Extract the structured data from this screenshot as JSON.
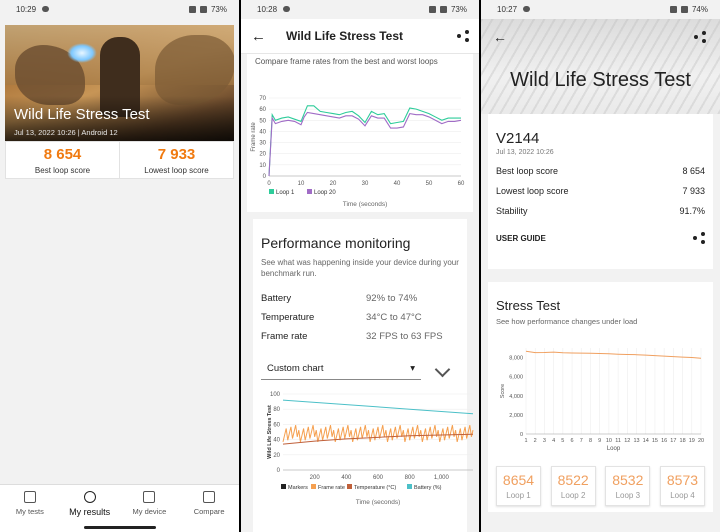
{
  "panel1": {
    "status": {
      "time": "10:29",
      "battery": "73%"
    },
    "hero": {
      "title": "Wild Life Stress Test",
      "subtitle": "Jul 13, 2022 10:26 | Android 12"
    },
    "scores": [
      {
        "value": "8 654",
        "label": "Best loop score"
      },
      {
        "value": "7 933",
        "label": "Lowest loop score"
      }
    ],
    "nav": [
      {
        "label": "My tests",
        "icon": "tests-icon"
      },
      {
        "label": "My results",
        "icon": "history-icon",
        "active": true
      },
      {
        "label": "My device",
        "icon": "device-icon"
      },
      {
        "label": "Compare",
        "icon": "compare-icon"
      }
    ]
  },
  "panel2": {
    "status": {
      "time": "10:28",
      "battery": "73%"
    },
    "appbar": {
      "title": "Wild Life Stress Test"
    },
    "compare_caption": "Compare frame rates from the best and worst loops",
    "perf": {
      "title": "Performance monitoring",
      "desc": "See what was happening inside your device during your benchmark run.",
      "rows": [
        {
          "key": "Battery",
          "value": "92% to 74%"
        },
        {
          "key": "Temperature",
          "value": "34°C to 47°C"
        },
        {
          "key": "Frame rate",
          "value": "32 FPS to 63 FPS"
        }
      ],
      "dropdown": "Custom chart"
    }
  },
  "panel3": {
    "status": {
      "time": "10:27",
      "battery": "74%"
    },
    "title": "Wild Life Stress Test",
    "device": "V2144",
    "date": "Jul 13, 2022 10:26",
    "rows": [
      {
        "key": "Best loop score",
        "value": "8 654"
      },
      {
        "key": "Lowest loop score",
        "value": "7 933"
      },
      {
        "key": "Stability",
        "value": "91.7%"
      }
    ],
    "guide": "USER GUIDE",
    "stress": {
      "title": "Stress Test",
      "desc": "See how performance changes under load"
    },
    "loops": [
      {
        "value": "8654",
        "label": "Loop 1"
      },
      {
        "value": "8522",
        "label": "Loop 2"
      },
      {
        "value": "8532",
        "label": "Loop 3"
      },
      {
        "value": "8573",
        "label": "Loop 4"
      }
    ]
  },
  "chart_data": [
    {
      "type": "line",
      "title": "",
      "xlabel": "Time (seconds)",
      "ylabel": "Frame rate",
      "xlim": [
        0,
        60
      ],
      "ylim": [
        0,
        70
      ],
      "x_ticks": [
        0,
        10,
        20,
        30,
        40,
        50,
        60
      ],
      "y_ticks": [
        0,
        10,
        20,
        30,
        40,
        50,
        60,
        70
      ],
      "legend": "bottom-left",
      "x": [
        0,
        1,
        2,
        4,
        6,
        8,
        10,
        11,
        12,
        14,
        16,
        18,
        20,
        22,
        24,
        26,
        28,
        30,
        32,
        34,
        36,
        38,
        40,
        42,
        44,
        46,
        48,
        50,
        52,
        54,
        56,
        58,
        60
      ],
      "series": [
        {
          "name": "Loop 1",
          "color": "#2ecc9a",
          "values": [
            0,
            55,
            50,
            52,
            53,
            51,
            49,
            56,
            63,
            63,
            58,
            57,
            56,
            55,
            57,
            58,
            54,
            48,
            58,
            55,
            56,
            47,
            48,
            49,
            61,
            60,
            58,
            56,
            53,
            50,
            52,
            52,
            52
          ]
        },
        {
          "name": "Loop 20",
          "color": "#a06cc6",
          "values": [
            0,
            52,
            47,
            49,
            50,
            49,
            46,
            53,
            57,
            56,
            55,
            54,
            53,
            52,
            54,
            54,
            51,
            45,
            54,
            52,
            52,
            43,
            43,
            44,
            56,
            55,
            55,
            53,
            50,
            47,
            49,
            49,
            50
          ]
        }
      ]
    },
    {
      "type": "line",
      "title": "",
      "xlabel": "Time (seconds)",
      "ylabel": "Wild Life Stress Test",
      "xlim": [
        0,
        1200
      ],
      "ylim": [
        0,
        100
      ],
      "x_ticks": [
        200,
        400,
        600,
        800,
        1000
      ],
      "x_tick_labels": [
        "200",
        "400",
        "600",
        "800",
        "1,000"
      ],
      "y_ticks": [
        0,
        20,
        40,
        60,
        80,
        100
      ],
      "legend": "bottom",
      "series": [
        {
          "name": "Markers",
          "color": "#222222",
          "x": [],
          "values": []
        },
        {
          "name": "Frame rate",
          "color": "#f5a050",
          "x": [
            0,
            1200
          ],
          "values": [
            50,
            50
          ],
          "note_style": "noisy"
        },
        {
          "name": "Temperature (°C)",
          "color": "#c0603a",
          "x": [
            0,
            200,
            400,
            600,
            800,
            1000,
            1200
          ],
          "values": [
            34,
            38,
            41,
            43,
            45,
            46,
            47
          ]
        },
        {
          "name": "Battery (%)",
          "color": "#4cc0c8",
          "x": [
            0,
            200,
            400,
            600,
            800,
            1000,
            1200
          ],
          "values": [
            92,
            89,
            86,
            83,
            80,
            77,
            74
          ]
        }
      ]
    },
    {
      "type": "line",
      "title": "",
      "xlabel": "Loop",
      "ylabel": "Score",
      "xlim": [
        1,
        20
      ],
      "ylim": [
        0,
        9000
      ],
      "y_ticks": [
        0,
        2000,
        4000,
        6000,
        8000
      ],
      "y_tick_labels": [
        "0",
        "2,000",
        "4,000",
        "6,000",
        "8,000"
      ],
      "categories": [
        "1",
        "2",
        "3",
        "4",
        "5",
        "6",
        "7",
        "8",
        "9",
        "10",
        "11",
        "12",
        "13",
        "14",
        "15",
        "16",
        "17",
        "18",
        "19",
        "20"
      ],
      "series": [
        {
          "name": "",
          "color": "#f0a060",
          "values": [
            8654,
            8522,
            8532,
            8573,
            8500,
            8480,
            8470,
            8450,
            8420,
            8400,
            8350,
            8320,
            8300,
            8250,
            8200,
            8150,
            8100,
            8050,
            8000,
            7933
          ]
        }
      ]
    }
  ]
}
